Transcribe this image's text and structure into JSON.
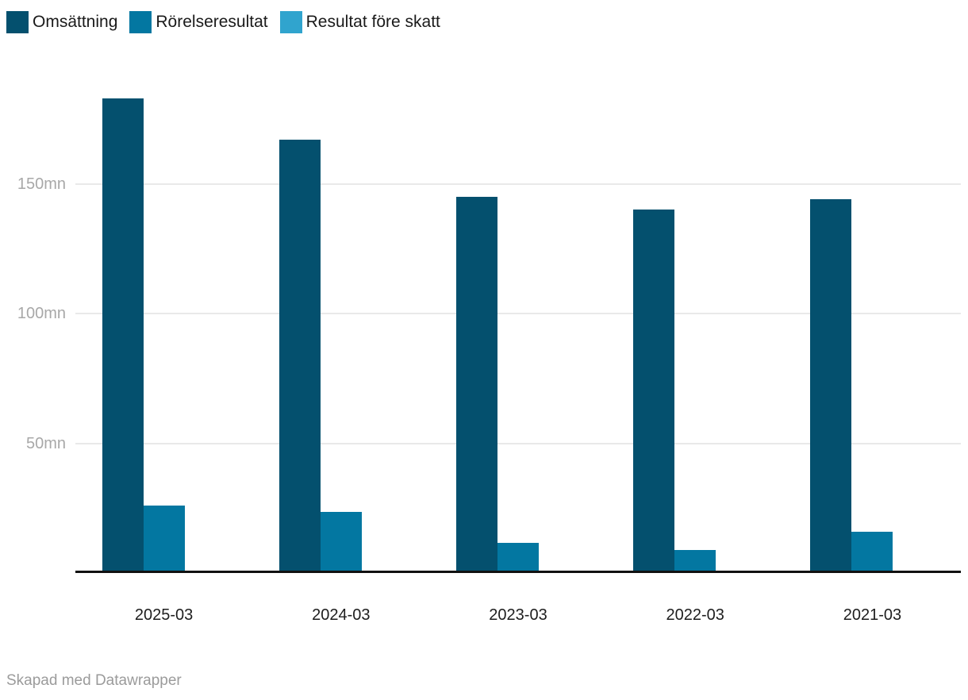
{
  "chart_data": {
    "type": "bar",
    "title": "",
    "categories": [
      "2025-03",
      "2024-03",
      "2023-03",
      "2022-03",
      "2021-03"
    ],
    "series": [
      {
        "name": "Omsättning",
        "color": "#04506e",
        "values": [
          183,
          167,
          145,
          140,
          144
        ]
      },
      {
        "name": "Rörelseresultat",
        "color": "#0377a1",
        "values": [
          26,
          23.5,
          11.5,
          9,
          16
        ]
      },
      {
        "name": "Resultat före skatt",
        "color": "#30a4ce",
        "values": [
          null,
          null,
          null,
          null,
          null
        ],
        "note": "no separate columns visible for this series in the plot"
      }
    ],
    "y_ticks": [
      {
        "value": 50,
        "label": "50mn"
      },
      {
        "value": 100,
        "label": "100mn"
      },
      {
        "value": 150,
        "label": "150mn"
      }
    ],
    "ylim": [
      0,
      200
    ],
    "unit": "mn",
    "grid": true,
    "legend_position": "top-left",
    "xlabel": "",
    "ylabel": ""
  },
  "footer": {
    "credit": "Skapad med Datawrapper"
  },
  "colors": {
    "axis": "#111111",
    "gridline": "#e9e9e9",
    "y_tick_label": "#a8a8a8",
    "x_tick_label": "#1d1d1d",
    "legend_text": "#1a1a1a",
    "background": "#ffffff"
  }
}
